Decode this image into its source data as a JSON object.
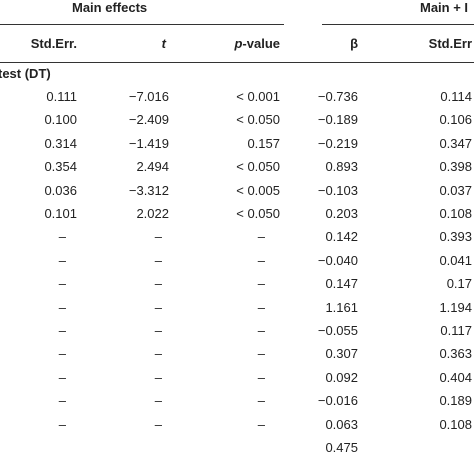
{
  "table": {
    "groups": [
      "Main effects",
      "Main + I"
    ],
    "columns": [
      "Std.Err.",
      "t",
      "p-value",
      "β",
      "Std.Err"
    ],
    "section": "test (DT)",
    "rows": [
      [
        "0.111",
        "−7.016",
        "< 0.001",
        "−0.736",
        "0.114"
      ],
      [
        "0.100",
        "−2.409",
        "< 0.050",
        "−0.189",
        "0.106"
      ],
      [
        "0.314",
        "−1.419",
        "0.157",
        "−0.219",
        "0.347"
      ],
      [
        "0.354",
        "2.494",
        "< 0.050",
        "0.893",
        "0.398"
      ],
      [
        "0.036",
        "−3.312",
        "< 0.005",
        "−0.103",
        "0.037"
      ],
      [
        "0.101",
        "2.022",
        "< 0.050",
        "0.203",
        "0.108"
      ],
      [
        "–",
        "–",
        "–",
        "0.142",
        "0.393"
      ],
      [
        "–",
        "–",
        "–",
        "−0.040",
        "0.041"
      ],
      [
        "–",
        "–",
        "–",
        "0.147",
        "0.17"
      ],
      [
        "–",
        "–",
        "–",
        "1.161",
        "1.194"
      ],
      [
        "–",
        "–",
        "–",
        "−0.055",
        "0.117"
      ],
      [
        "–",
        "–",
        "–",
        "0.307",
        "0.363"
      ],
      [
        "–",
        "–",
        "–",
        "0.092",
        "0.404"
      ],
      [
        "–",
        "–",
        "–",
        "−0.016",
        "0.189"
      ],
      [
        "–",
        "–",
        "–",
        "0.063",
        "0.108"
      ],
      [
        null,
        null,
        null,
        "0.475",
        null
      ]
    ]
  }
}
